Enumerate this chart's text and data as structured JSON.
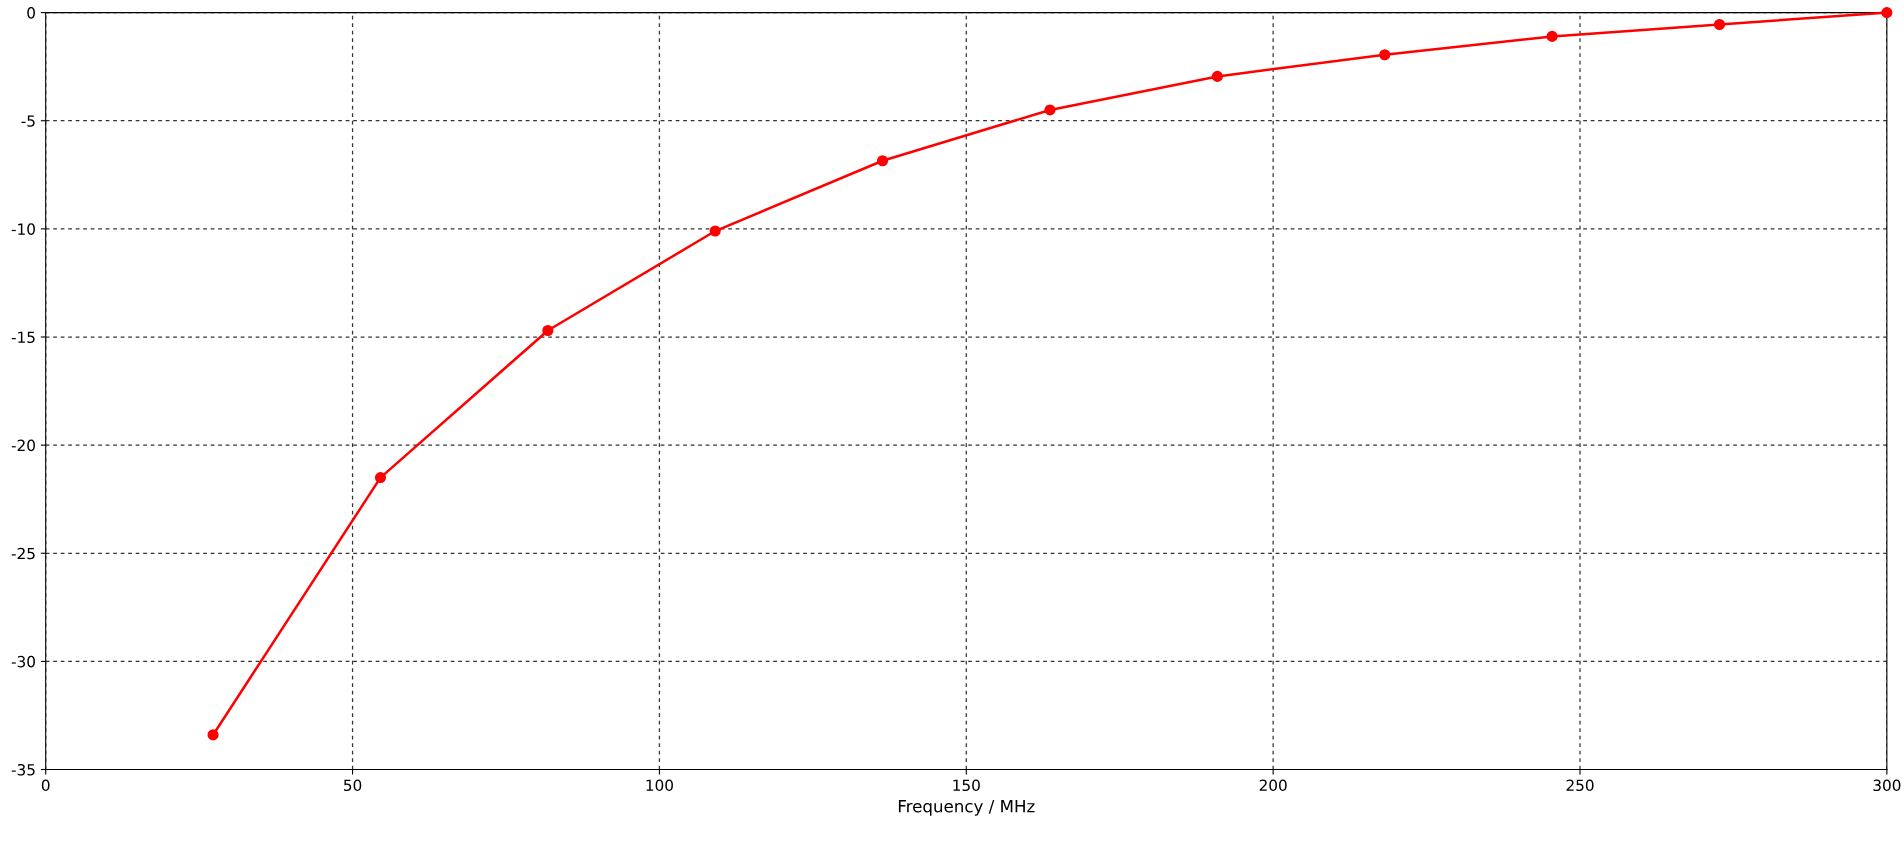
{
  "chart_data": {
    "type": "line",
    "xlabel": "Frequency / MHz",
    "x": [
      27.27,
      54.55,
      81.82,
      109.09,
      136.36,
      163.64,
      190.91,
      218.18,
      245.45,
      272.73,
      300
    ],
    "series": [
      {
        "color": "#ff0000",
        "values": [
          -33.4,
          -21.5,
          -14.7,
          -10.1,
          -6.85,
          -4.5,
          -2.95,
          -1.95,
          -1.1,
          -0.55,
          0
        ]
      }
    ],
    "xlim": [
      0,
      300
    ],
    "ylim": [
      -35,
      0
    ],
    "xticks": [
      0,
      50,
      100,
      150,
      200,
      250,
      300
    ],
    "yticks": [
      -35,
      -30,
      -25,
      -20,
      -15,
      -10,
      -5,
      0
    ],
    "grid": true,
    "marker": "circle",
    "line_style": "solid"
  }
}
